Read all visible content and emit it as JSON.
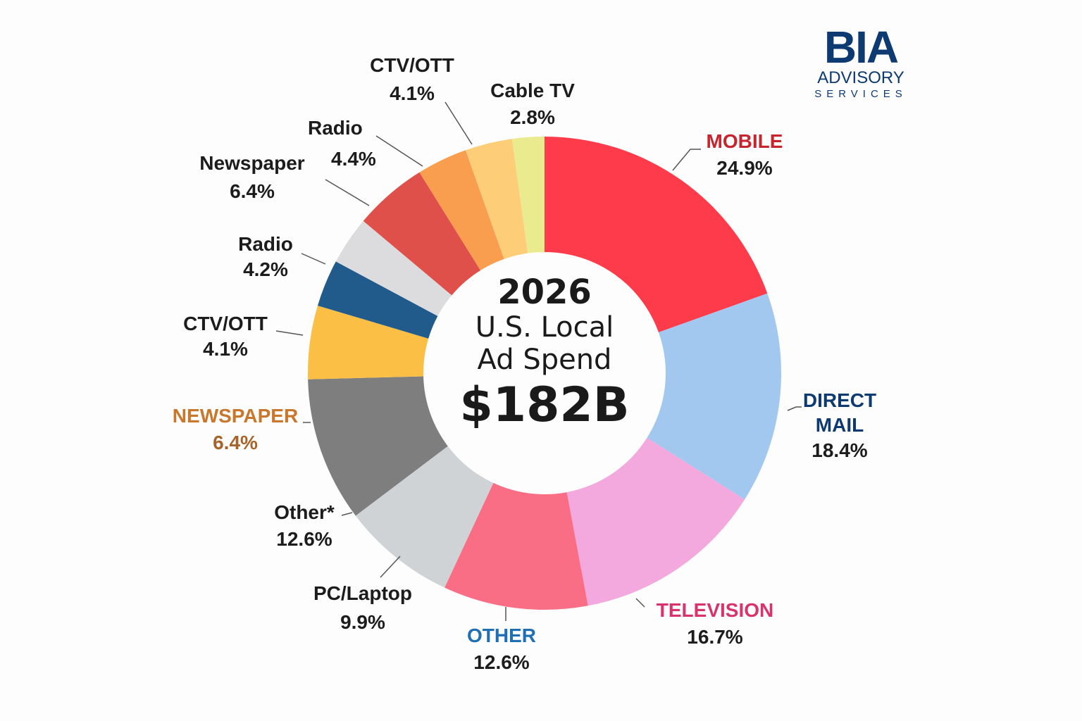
{
  "chart_data": {
    "type": "pie",
    "subtype": "donut",
    "title": "2026 U.S. Local Ad Spend",
    "center": {
      "year": "2026",
      "line1": "U.S. Local",
      "line2": "Ad Spend",
      "total": "$182B"
    },
    "slices": [
      {
        "label": "MOBILE",
        "value": 24.9,
        "display": "24.9%",
        "color": "#fe3b4b",
        "label_color": "#c8242e"
      },
      {
        "label": "DIRECT MAIL",
        "label_lines": [
          "DIRECT",
          "MAIL"
        ],
        "value": 18.4,
        "display": "18.4%",
        "color": "#a3c8ef",
        "label_color": "#0e3a72"
      },
      {
        "label": "TELEVISION",
        "value": 16.7,
        "display": "16.7%",
        "color": "#f3a8de",
        "label_color": "#d9336b"
      },
      {
        "label": "OTHER",
        "value": 12.6,
        "display": "12.6%",
        "color": "#f96e84",
        "label_color": "#1f6fb5"
      },
      {
        "label": "PC/Laptop",
        "value": 9.9,
        "display": "9.9%",
        "color": "#d0d3d6",
        "label_color": "#1c1c1c"
      },
      {
        "label": "Other*",
        "value": 12.6,
        "display": "12.6%",
        "color": "#7e7e7e",
        "label_color": "#1c1c1c"
      },
      {
        "label": "NEWSPAPER",
        "value": 6.4,
        "display": "6.4%",
        "color": "#fcbf45",
        "label_color": "#c9772a"
      },
      {
        "label": "CTV/OTT",
        "value": 4.1,
        "display": "4.1%",
        "color": "#205b8c",
        "label_color": "#1c1c1c"
      },
      {
        "label": "Radio",
        "value": 4.2,
        "display": "4.2%",
        "color": "#dcdcdf",
        "label_color": "#1c1c1c"
      },
      {
        "label": "Newspaper",
        "value": 6.4,
        "display": "6.4%",
        "color": "#e0504a",
        "label_color": "#1c1c1c"
      },
      {
        "label": "Radio",
        "value": 4.4,
        "display": "4.4%",
        "color": "#f99e4e",
        "label_color": "#1c1c1c"
      },
      {
        "label": "CTV/OTT",
        "value": 4.1,
        "display": "4.1%",
        "color": "#fdcd78",
        "label_color": "#1c1c1c"
      },
      {
        "label": "Cable TV",
        "value": 2.8,
        "display": "2.8%",
        "color": "#eaeb8e",
        "label_color": "#1c1c1c"
      }
    ]
  },
  "logo": {
    "name": "BIA",
    "line2": "ADVISORY",
    "line3": "SERVICES"
  }
}
